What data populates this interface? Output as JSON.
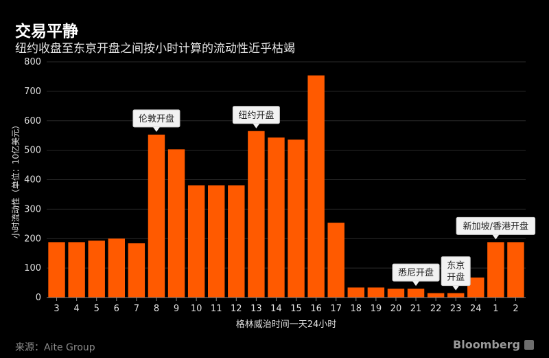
{
  "header": {
    "title": "交易平静",
    "subtitle": "纽约收盘至东京开盘之间按小时计算的流动性近乎枯竭"
  },
  "footer": {
    "source": "来源：Aite Group",
    "brand": "Bloomberg"
  },
  "colors": {
    "background": "#000000",
    "bar": "#ff5a00",
    "grid": "#2a2a2a",
    "annotation_bg": "#f2f2f2"
  },
  "chart_data": {
    "type": "bar",
    "xlabel": "格林威治时间一天24小时",
    "ylabel": "小时流动性（单位：10亿美元）",
    "ylim": [
      0,
      800
    ],
    "yticks": [
      0,
      100,
      200,
      300,
      400,
      500,
      600,
      700,
      800
    ],
    "grid": true,
    "categories": [
      "3",
      "4",
      "5",
      "6",
      "7",
      "8",
      "9",
      "10",
      "11",
      "12",
      "13",
      "14",
      "15",
      "16",
      "17",
      "18",
      "19",
      "20",
      "21",
      "22",
      "23",
      "24",
      "1",
      "2"
    ],
    "values": [
      188,
      188,
      193,
      200,
      184,
      553,
      503,
      381,
      381,
      381,
      565,
      543,
      536,
      754,
      254,
      34,
      34,
      30,
      30,
      15,
      15,
      68,
      188,
      188
    ],
    "annotations": [
      {
        "category": "8",
        "lines": [
          "伦敦开盘"
        ]
      },
      {
        "category": "13",
        "lines": [
          "纽约开盘"
        ]
      },
      {
        "category": "21",
        "lines": [
          "悉尼开盘"
        ]
      },
      {
        "category": "23",
        "lines": [
          "东京",
          "开盘"
        ]
      },
      {
        "category": "1",
        "lines": [
          "新加坡/香港开盘"
        ]
      }
    ]
  }
}
